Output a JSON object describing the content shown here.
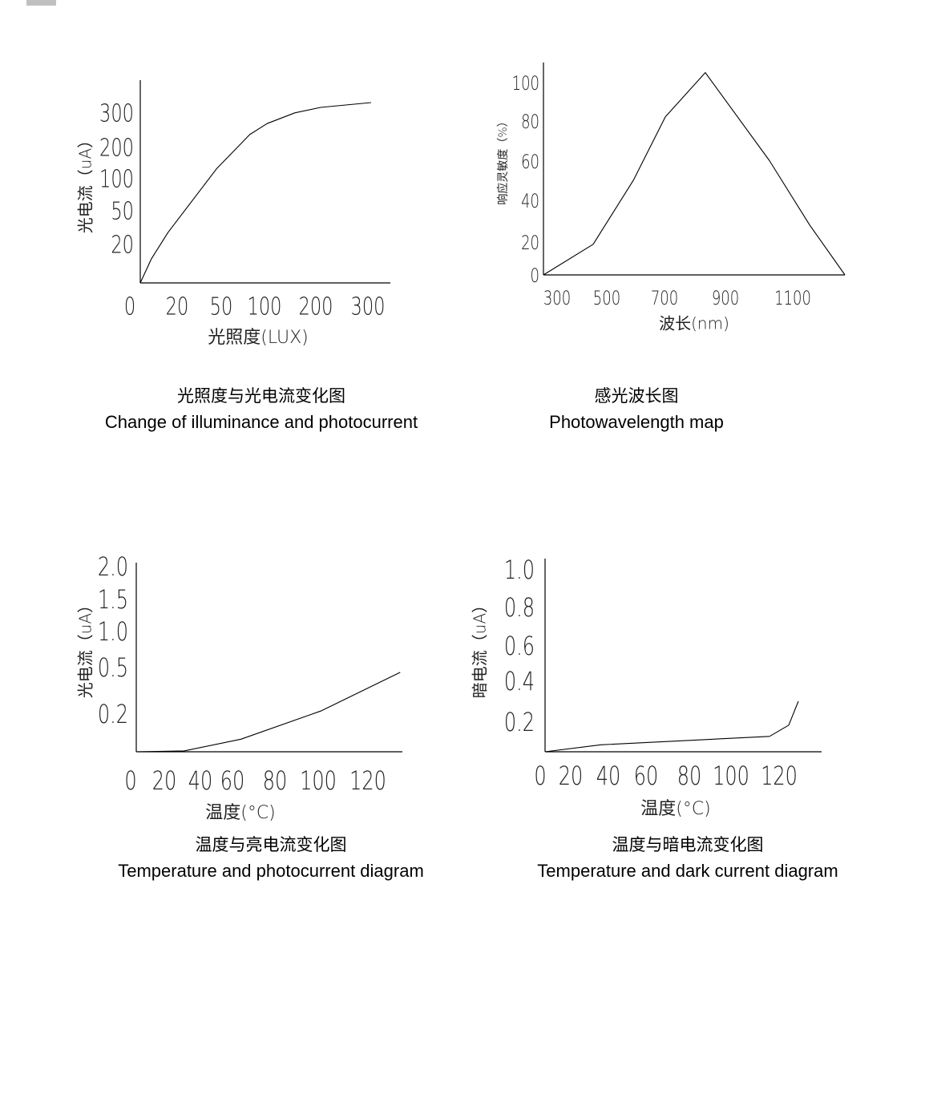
{
  "chart_data": [
    {
      "type": "line",
      "caption_cn": "光照度与光电流变化图",
      "caption_en": "Change of illuminance and photocurrent",
      "xlabel": "光照度(LUX)",
      "ylabel": "光电流（uA）",
      "x_ticks": [
        "0",
        "20",
        "50",
        "100",
        "200",
        "300"
      ],
      "y_ticks": [
        "20",
        "50",
        "100",
        "200",
        "300"
      ],
      "x": [
        0,
        6,
        15,
        47,
        83,
        105,
        159,
        209,
        306
      ],
      "y": [
        0,
        13,
        32,
        138,
        242,
        274,
        305,
        321,
        335
      ]
    },
    {
      "type": "line",
      "caption_cn": "感光波长图",
      "caption_en": "Photowavelength map",
      "xlabel": "波长(nm)",
      "ylabel": "响应灵敏度（%）",
      "x_ticks": [
        "300",
        "500",
        "700",
        "900",
        "1100"
      ],
      "y_ticks": [
        "0",
        "20",
        "40",
        "60",
        "80",
        "100"
      ],
      "x": [
        245,
        445,
        592,
        703,
        834,
        1031,
        1150,
        1255
      ],
      "y": [
        0,
        19.6,
        51,
        83,
        106,
        61,
        29,
        0
      ]
    },
    {
      "type": "line",
      "caption_cn": "温度与亮电流变化图",
      "caption_en": "Temperature and photocurrent diagram",
      "xlabel": "温度(°C)",
      "ylabel": "光电流（uA）",
      "x_ticks": [
        "0",
        "20",
        "40",
        "60",
        "80",
        "100",
        "120"
      ],
      "y_ticks": [
        "0.2",
        "0.5",
        "1.0",
        "1.5",
        "2.0"
      ],
      "x": [
        0,
        31,
        64,
        101,
        133
      ],
      "y": [
        0,
        0.005,
        0.07,
        0.23,
        0.48
      ]
    },
    {
      "type": "line",
      "caption_cn": "温度与暗电流变化图",
      "caption_en": "Temperature and dark current diagram",
      "xlabel": "温度(°C)",
      "ylabel": "暗电流（uA）",
      "x_ticks": [
        "0",
        "20",
        "40",
        "60",
        "80",
        "100",
        "120"
      ],
      "y_ticks": [
        "0.2",
        "0.4",
        "0.6",
        "0.8",
        "1.0"
      ],
      "x": [
        0,
        36,
        116,
        124,
        128
      ],
      "y": [
        0,
        0.05,
        0.11,
        0.19,
        0.31
      ]
    }
  ]
}
